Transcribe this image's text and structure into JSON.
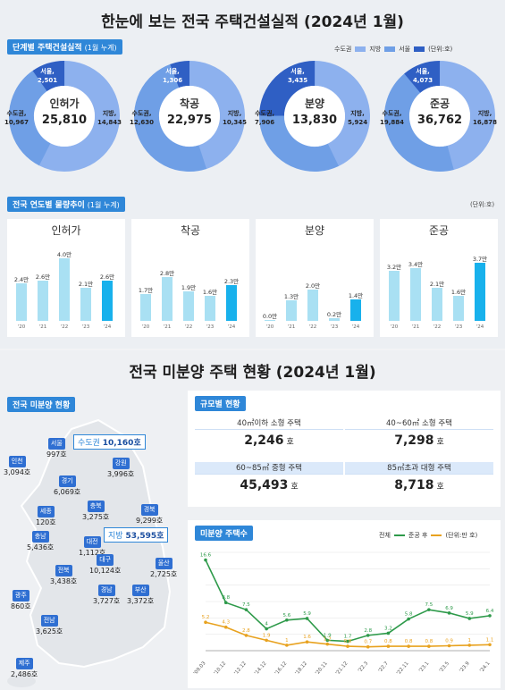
{
  "main_title": "한눈에 보는 전국 주택건설실적 (2024년 1월)",
  "stage": {
    "tag": "단계별 주택건설실적",
    "tag_sub": "(1월 누계)",
    "legend": [
      "수도권",
      "지방",
      "서울"
    ],
    "unit": "(단위:호)",
    "colors": {
      "capital": "#6f9fe6",
      "local": "#8db1ee",
      "seoul": "#2f5fc4"
    },
    "donuts": [
      {
        "name": "인허가",
        "total": "25,810",
        "capital_label": "수도권,",
        "capital_value": "10,967",
        "local_label": "지방,",
        "local_value": "14,843",
        "seoul_label": "서울,",
        "seoul_value": "2,501",
        "capital": 10967,
        "local": 14843,
        "seoul": 2501
      },
      {
        "name": "착공",
        "total": "22,975",
        "capital_label": "수도권,",
        "capital_value": "12,630",
        "local_label": "지방,",
        "local_value": "10,345",
        "seoul_label": "서울,",
        "seoul_value": "1,306",
        "capital": 12630,
        "local": 10345,
        "seoul": 1306
      },
      {
        "name": "분양",
        "total": "13,830",
        "capital_label": "수도권,",
        "capital_value": "7,906",
        "local_label": "지방,",
        "local_value": "5,924",
        "seoul_label": "서울,",
        "seoul_value": "3,435",
        "capital": 7906,
        "local": 5924,
        "seoul": 3435
      },
      {
        "name": "준공",
        "total": "36,762",
        "capital_label": "수도권,",
        "capital_value": "19,884",
        "local_label": "지방,",
        "local_value": "16,878",
        "seoul_label": "서울,",
        "seoul_value": "4,073",
        "capital": 19884,
        "local": 16878,
        "seoul": 4073
      }
    ]
  },
  "yearly": {
    "tag": "전국 연도별 물량추이",
    "tag_sub": "(1월 누계)",
    "unit": "(단위:호)",
    "years": [
      "'20",
      "'21",
      "'22",
      "'23",
      "'24"
    ],
    "panels": [
      {
        "name": "인허가",
        "values": [
          2.4,
          2.6,
          4.0,
          2.1,
          2.6
        ],
        "labels": [
          "2.4만",
          "2.6만",
          "4.0만",
          "2.1만",
          "2.6만"
        ]
      },
      {
        "name": "착공",
        "values": [
          1.7,
          2.8,
          1.9,
          1.6,
          2.3
        ],
        "labels": [
          "1.7만",
          "2.8만",
          "1.9만",
          "1.6만",
          "2.3만"
        ]
      },
      {
        "name": "분양",
        "values": [
          0.0,
          1.3,
          2.0,
          0.2,
          1.4
        ],
        "labels": [
          "0.0만",
          "1.3만",
          "2.0만",
          "0.2만",
          "1.4만"
        ]
      },
      {
        "name": "준공",
        "values": [
          3.2,
          3.4,
          2.1,
          1.6,
          3.7
        ],
        "labels": [
          "3.2만",
          "3.4만",
          "2.1만",
          "1.6만",
          "3.7만"
        ]
      }
    ]
  },
  "unsold_title": "전국 미분양 주택 현황 (2024년 1월)",
  "map": {
    "tag": "전국 미분양 현황",
    "capital_label": "수도권",
    "capital_value": "10,160호",
    "local_label": "지방",
    "local_value": "53,595호",
    "regions": [
      {
        "name": "서울",
        "value": "997호"
      },
      {
        "name": "인천",
        "value": "3,094호"
      },
      {
        "name": "경기",
        "value": "6,069호"
      },
      {
        "name": "강원",
        "value": "3,996호"
      },
      {
        "name": "충북",
        "value": "3,275호"
      },
      {
        "name": "세종",
        "value": "120호"
      },
      {
        "name": "충남",
        "value": "5,436호"
      },
      {
        "name": "대전",
        "value": "1,112호"
      },
      {
        "name": "경북",
        "value": "9,299호"
      },
      {
        "name": "전북",
        "value": "3,438호"
      },
      {
        "name": "대구",
        "value": "10,124호"
      },
      {
        "name": "울산",
        "value": "2,725호"
      },
      {
        "name": "광주",
        "value": "860호"
      },
      {
        "name": "경남",
        "value": "3,727호"
      },
      {
        "name": "부산",
        "value": "3,372호"
      },
      {
        "name": "전남",
        "value": "3,625호"
      },
      {
        "name": "제주",
        "value": "2,486호"
      }
    ]
  },
  "size": {
    "tag": "규모별 현황",
    "items": [
      {
        "label": "40㎡이하 소형 주택",
        "value": "2,246",
        "unit": "호"
      },
      {
        "label": "40~60㎡ 소형 주택",
        "value": "7,298",
        "unit": "호"
      },
      {
        "label": "60~85㎡ 중형 주택",
        "value": "45,493",
        "unit": "호"
      },
      {
        "label": "85㎡초과 대형 주택",
        "value": "8,718",
        "unit": "호"
      }
    ]
  },
  "trend": {
    "tag": "미분양 주택수",
    "legend_total": "전체",
    "legend_done": "준공 후",
    "unit": "(단위:만 호)",
    "total_color": "#2e9a4a",
    "done_color": "#e8a21f"
  },
  "chart_data": {
    "type": "line",
    "title": "미분양 주택수",
    "ylabel": "(단위:만 호)",
    "x": [
      "'09.03",
      "'10.12",
      "'12.12",
      "'14.12",
      "'16.12",
      "'18.12",
      "'20.11",
      "'21.12",
      "'22.3",
      "'22.7",
      "'22.11",
      "'23.1",
      "'23.5",
      "'23.9",
      "'24.1"
    ],
    "series": [
      {
        "name": "전체",
        "values": [
          16.6,
          8.8,
          7.5,
          4.0,
          5.6,
          5.9,
          1.9,
          1.7,
          2.8,
          3.2,
          5.8,
          7.5,
          6.9,
          5.9,
          6.4
        ]
      },
      {
        "name": "준공 후",
        "values": [
          5.2,
          4.3,
          2.8,
          1.9,
          1.0,
          1.6,
          1.2,
          0.8,
          0.7,
          0.8,
          0.8,
          0.8,
          0.9,
          1.0,
          1.1
        ]
      }
    ],
    "ylim": [
      0,
      18
    ]
  }
}
